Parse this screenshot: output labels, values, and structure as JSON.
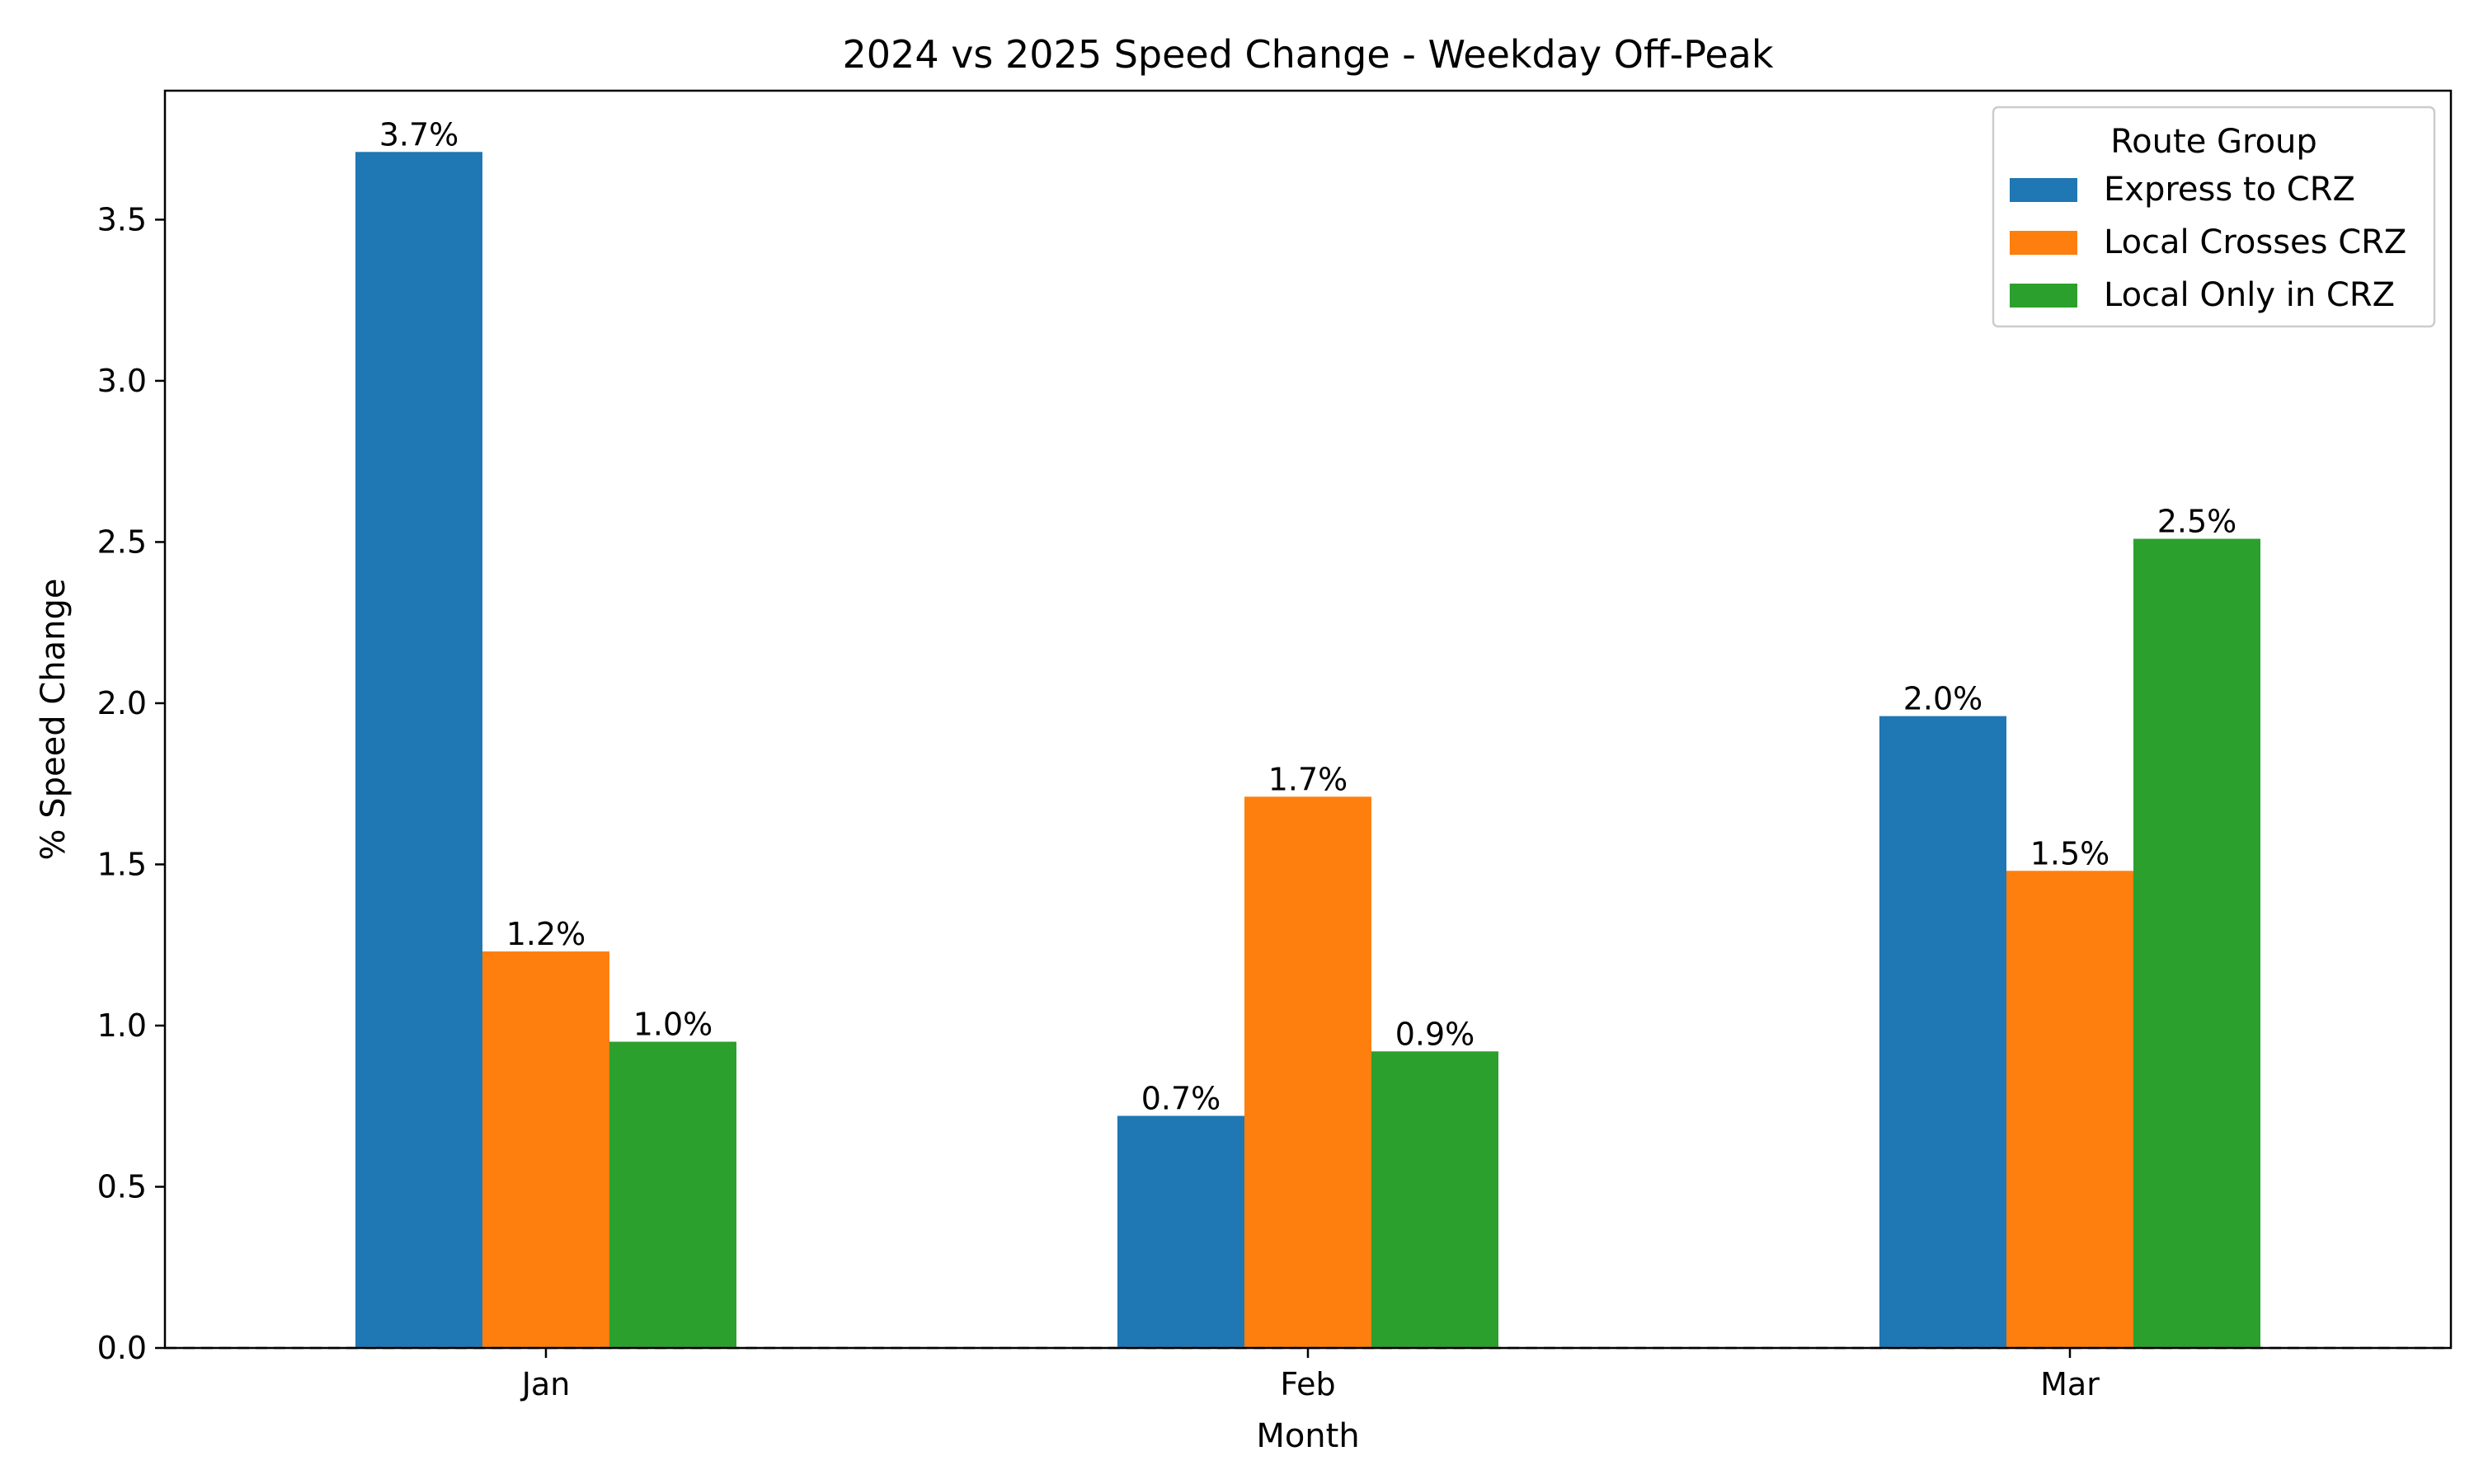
{
  "chart_data": {
    "type": "bar",
    "title": "2024 vs 2025 Speed Change - Weekday Off-Peak",
    "xlabel": "Month",
    "ylabel": "% Speed Change",
    "categories": [
      "Jan",
      "Feb",
      "Mar"
    ],
    "series": [
      {
        "name": "Express to CRZ",
        "values": [
          3.71,
          0.72,
          1.96
        ],
        "labels": [
          "3.7%",
          "0.7%",
          "2.0%"
        ],
        "color": "#1f77b4"
      },
      {
        "name": "Local Crosses CRZ",
        "values": [
          1.23,
          1.71,
          1.48
        ],
        "labels": [
          "1.2%",
          "1.7%",
          "1.5%"
        ],
        "color": "#ff7f0e"
      },
      {
        "name": "Local Only in CRZ",
        "values": [
          0.95,
          0.92,
          2.51
        ],
        "labels": [
          "1.0%",
          "0.9%",
          "2.5%"
        ],
        "color": "#2ca02c"
      }
    ],
    "ylim": [
      0,
      3.9
    ],
    "yticks": [
      0.0,
      0.5,
      1.0,
      1.5,
      2.0,
      2.5,
      3.0,
      3.5
    ],
    "ytick_labels": [
      "0.0",
      "0.5",
      "1.0",
      "1.5",
      "2.0",
      "2.5",
      "3.0",
      "3.5"
    ],
    "legend": {
      "title": "Route Group",
      "placement": "top-right"
    },
    "grid": false,
    "zero_line": "dashed"
  }
}
